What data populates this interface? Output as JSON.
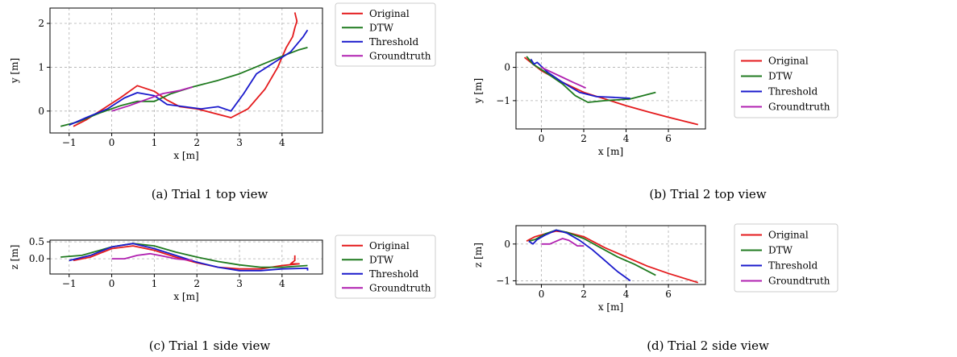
{
  "captions": {
    "a": "(a)  Trial 1 top view",
    "b": "(b)  Trial 2 top view",
    "c": "(c)  Trial 1 side view",
    "d": "(d)  Trial 2 side view"
  },
  "colors": {
    "Original": "#e41a1c",
    "DTW": "#1f7a1f",
    "Threshold": "#1a1acc",
    "Groundtruth": "#b020b0"
  },
  "chart_data": [
    {
      "id": "a",
      "type": "line",
      "xlabel": "x [m]",
      "ylabel": "y [m]",
      "xlim": [
        -1.45,
        4.95
      ],
      "ylim": [
        -0.5,
        2.35
      ],
      "xticks": [
        -1,
        0,
        1,
        2,
        3,
        4
      ],
      "yticks": [
        0,
        1,
        2
      ],
      "grid": true,
      "legend": "outside-right",
      "legend_entries": [
        "Original",
        "DTW",
        "Threshold",
        "Groundtruth"
      ],
      "series": [
        {
          "name": "Original",
          "x": [
            -0.9,
            -0.6,
            -0.2,
            0.2,
            0.6,
            1.0,
            1.3,
            1.6,
            2.0,
            2.4,
            2.8,
            3.2,
            3.6,
            3.9,
            4.1,
            4.25,
            4.3,
            4.35,
            4.3
          ],
          "y": [
            -0.35,
            -0.2,
            0.05,
            0.3,
            0.58,
            0.45,
            0.25,
            0.1,
            0.05,
            -0.05,
            -0.15,
            0.05,
            0.5,
            1.0,
            1.45,
            1.7,
            1.9,
            2.05,
            2.25
          ]
        },
        {
          "name": "DTW",
          "x": [
            -1.2,
            -0.8,
            -0.3,
            0.2,
            0.6,
            1.0,
            1.4,
            1.9,
            2.5,
            3.0,
            3.5,
            4.0,
            4.4,
            4.6
          ],
          "y": [
            -0.35,
            -0.25,
            -0.05,
            0.12,
            0.22,
            0.22,
            0.4,
            0.55,
            0.7,
            0.85,
            1.05,
            1.25,
            1.4,
            1.45
          ]
        },
        {
          "name": "Threshold",
          "x": [
            -1.0,
            -0.6,
            -0.1,
            0.3,
            0.6,
            1.0,
            1.3,
            1.7,
            2.1,
            2.5,
            2.8,
            3.1,
            3.4,
            3.8,
            4.2,
            4.5,
            4.6
          ],
          "y": [
            -0.32,
            -0.15,
            0.05,
            0.3,
            0.42,
            0.35,
            0.15,
            0.1,
            0.05,
            0.1,
            0.0,
            0.4,
            0.85,
            1.1,
            1.35,
            1.7,
            1.85
          ]
        },
        {
          "name": "Groundtruth",
          "x": [
            0.0,
            0.4,
            0.8,
            1.2,
            1.6,
            1.9
          ],
          "y": [
            0.0,
            0.12,
            0.26,
            0.4,
            0.47,
            0.55
          ]
        }
      ]
    },
    {
      "id": "b",
      "type": "line",
      "xlabel": "x [m]",
      "ylabel": "y [m]",
      "xlim": [
        -1.2,
        7.75
      ],
      "ylim": [
        -1.85,
        0.45
      ],
      "xticks": [
        0,
        2,
        4,
        6
      ],
      "yticks": [
        -1,
        0
      ],
      "grid": true,
      "legend": "outside-right",
      "legend_entries": [
        "Original",
        "DTW",
        "Threshold",
        "Groundtruth"
      ],
      "series": [
        {
          "name": "Original",
          "x": [
            -0.8,
            -0.5,
            0.0,
            1.0,
            2.0,
            3.0,
            4.0,
            5.0,
            6.0,
            7.4
          ],
          "y": [
            0.3,
            0.15,
            -0.1,
            -0.45,
            -0.75,
            -0.95,
            -1.15,
            -1.33,
            -1.5,
            -1.72
          ]
        },
        {
          "name": "DTW",
          "x": [
            -0.7,
            -0.4,
            0.2,
            1.0,
            1.6,
            2.2,
            3.0,
            4.2,
            5.4
          ],
          "y": [
            0.33,
            0.1,
            -0.15,
            -0.5,
            -0.85,
            -1.05,
            -1.0,
            -0.95,
            -0.75
          ]
        },
        {
          "name": "Threshold",
          "x": [
            -0.5,
            -0.35,
            -0.2,
            0.3,
            1.0,
            1.8,
            2.6,
            3.4,
            4.2
          ],
          "y": [
            0.25,
            0.1,
            0.15,
            -0.15,
            -0.45,
            -0.75,
            -0.88,
            -0.9,
            -0.93
          ]
        },
        {
          "name": "Groundtruth",
          "x": [
            0.0,
            0.5,
            1.0,
            1.5,
            2.1
          ],
          "y": [
            0.0,
            -0.15,
            -0.3,
            -0.45,
            -0.62
          ]
        }
      ]
    },
    {
      "id": "c",
      "type": "line",
      "xlabel": "x [m]",
      "ylabel": "z [m]",
      "xlim": [
        -1.45,
        4.95
      ],
      "ylim": [
        -0.45,
        0.55
      ],
      "xticks": [
        -1,
        0,
        1,
        2,
        3,
        4
      ],
      "yticks": [
        0.0,
        0.5
      ],
      "ytick_labels": [
        "0.0",
        "0.5"
      ],
      "grid": true,
      "legend": "outside-right",
      "legend_entries": [
        "Original",
        "DTW",
        "Threshold",
        "Groundtruth"
      ],
      "series": [
        {
          "name": "Original",
          "x": [
            -0.9,
            -0.5,
            0.0,
            0.5,
            1.0,
            1.5,
            2.0,
            2.5,
            3.0,
            3.5,
            4.0,
            4.4,
            4.2,
            4.3,
            4.3
          ],
          "y": [
            -0.05,
            0.05,
            0.3,
            0.38,
            0.25,
            0.05,
            -0.12,
            -0.25,
            -0.3,
            -0.3,
            -0.2,
            -0.15,
            -0.15,
            -0.05,
            0.1
          ]
        },
        {
          "name": "DTW",
          "x": [
            -1.2,
            -0.7,
            0.0,
            0.5,
            1.0,
            1.5,
            2.0,
            2.5,
            3.0,
            3.5,
            4.0,
            4.6
          ],
          "y": [
            0.05,
            0.1,
            0.35,
            0.45,
            0.38,
            0.2,
            0.05,
            -0.08,
            -0.18,
            -0.25,
            -0.25,
            -0.2
          ]
        },
        {
          "name": "Threshold",
          "x": [
            -1.0,
            -0.5,
            0.0,
            0.5,
            1.0,
            1.5,
            2.0,
            2.5,
            3.0,
            3.5,
            4.0,
            4.6,
            4.6
          ],
          "y": [
            -0.05,
            0.1,
            0.35,
            0.45,
            0.3,
            0.1,
            -0.1,
            -0.25,
            -0.35,
            -0.35,
            -0.3,
            -0.28,
            -0.35
          ]
        },
        {
          "name": "Groundtruth",
          "x": [
            0.0,
            0.3,
            0.6,
            0.9,
            1.2,
            1.5,
            1.9
          ],
          "y": [
            0.0,
            0.0,
            0.1,
            0.15,
            0.08,
            0.0,
            -0.05
          ]
        }
      ]
    },
    {
      "id": "d",
      "type": "line",
      "xlabel": "x [m]",
      "ylabel": "z [m]",
      "xlim": [
        -1.2,
        7.75
      ],
      "ylim": [
        -1.1,
        0.5
      ],
      "xticks": [
        0,
        2,
        4,
        6
      ],
      "yticks": [
        -1,
        0
      ],
      "grid": true,
      "legend": "outside-right",
      "legend_entries": [
        "Original",
        "DTW",
        "Threshold",
        "Groundtruth"
      ],
      "series": [
        {
          "name": "Original",
          "x": [
            -0.7,
            -0.3,
            0.2,
            0.7,
            1.2,
            2.0,
            3.0,
            4.0,
            5.0,
            6.0,
            7.4
          ],
          "y": [
            0.08,
            0.2,
            0.28,
            0.35,
            0.32,
            0.2,
            -0.1,
            -0.35,
            -0.6,
            -0.8,
            -1.05
          ]
        },
        {
          "name": "DTW",
          "x": [
            -0.6,
            -0.3,
            0.2,
            0.7,
            1.2,
            2.0,
            2.8,
            3.6,
            4.4,
            5.4
          ],
          "y": [
            0.08,
            0.12,
            0.28,
            0.38,
            0.32,
            0.15,
            -0.1,
            -0.35,
            -0.55,
            -0.85
          ]
        },
        {
          "name": "Threshold",
          "x": [
            -0.6,
            -0.4,
            -0.2,
            0.2,
            0.7,
            1.2,
            1.8,
            2.4,
            3.0,
            3.6,
            4.2
          ],
          "y": [
            0.08,
            0.0,
            0.12,
            0.25,
            0.38,
            0.3,
            0.1,
            -0.15,
            -0.45,
            -0.75,
            -1.0
          ]
        },
        {
          "name": "Groundtruth",
          "x": [
            0.0,
            0.4,
            0.8,
            1.0,
            1.3,
            1.7,
            2.0
          ],
          "y": [
            0.0,
            0.0,
            0.1,
            0.15,
            0.1,
            -0.05,
            -0.05
          ]
        }
      ]
    }
  ]
}
